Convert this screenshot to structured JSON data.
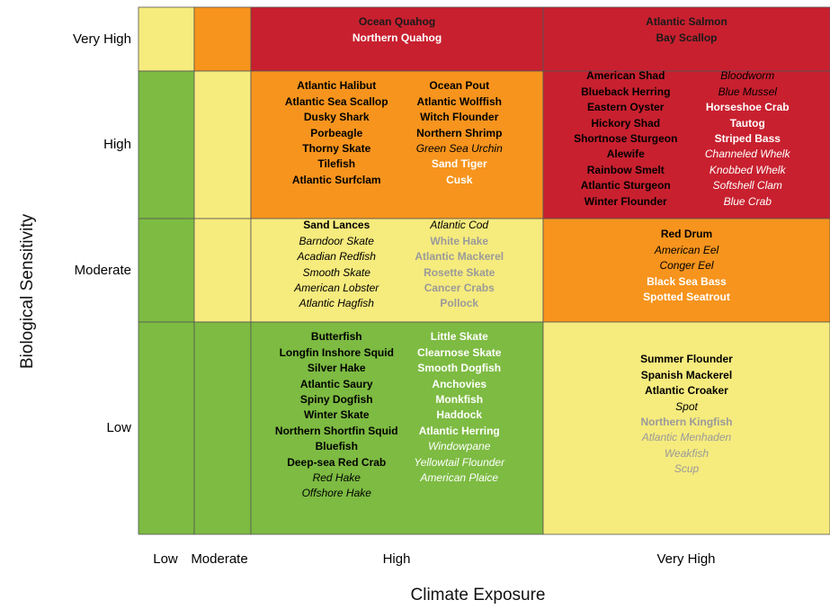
{
  "chart_data": {
    "type": "heatmap",
    "title": "",
    "xlabel": "Climate Exposure",
    "ylabel": "Biological Sensitivity",
    "x_categories": [
      "Low",
      "Moderate",
      "High",
      "Very High"
    ],
    "y_categories": [
      "Very High",
      "High",
      "Moderate",
      "Low"
    ],
    "colors": {
      "low": "#7dbb42",
      "moderate": "#f6eb7d",
      "high": "#f7941d",
      "very_high": "#c8202f"
    },
    "cells": [
      {
        "row": "Very High",
        "col": "Low",
        "level": "moderate",
        "species": []
      },
      {
        "row": "Very High",
        "col": "Moderate",
        "level": "high",
        "species": []
      },
      {
        "row": "Very High",
        "col": "High",
        "level": "very_high",
        "columns": [
          [
            {
              "name": "Ocean Quahog",
              "bold": true,
              "italic": false,
              "color": "#1a1a1a"
            },
            {
              "name": "Northern Quahog",
              "bold": true,
              "italic": false,
              "color": "#ffffff"
            }
          ]
        ]
      },
      {
        "row": "Very High",
        "col": "Very High",
        "level": "very_high",
        "columns": [
          [
            {
              "name": "Atlantic Salmon",
              "bold": true,
              "italic": false,
              "color": "#1a1a1a"
            },
            {
              "name": "Bay Scallop",
              "bold": true,
              "italic": false,
              "color": "#1a1a1a"
            }
          ]
        ]
      },
      {
        "row": "High",
        "col": "Low",
        "level": "low",
        "species": []
      },
      {
        "row": "High",
        "col": "Moderate",
        "level": "moderate",
        "species": []
      },
      {
        "row": "High",
        "col": "High",
        "level": "high",
        "columns": [
          [
            {
              "name": "Atlantic Halibut",
              "bold": true,
              "italic": false,
              "color": "#000000"
            },
            {
              "name": "Atlantic Sea Scallop",
              "bold": true,
              "italic": false,
              "color": "#000000"
            },
            {
              "name": "Dusky Shark",
              "bold": true,
              "italic": false,
              "color": "#000000"
            },
            {
              "name": "Porbeagle",
              "bold": true,
              "italic": false,
              "color": "#000000"
            },
            {
              "name": "Thorny Skate",
              "bold": true,
              "italic": false,
              "color": "#000000"
            },
            {
              "name": "Tilefish",
              "bold": true,
              "italic": false,
              "color": "#000000"
            },
            {
              "name": "Atlantic Surfclam",
              "bold": true,
              "italic": false,
              "color": "#000000"
            }
          ],
          [
            {
              "name": "Ocean Pout",
              "bold": true,
              "italic": false,
              "color": "#000000"
            },
            {
              "name": "Atlantic Wolffish",
              "bold": true,
              "italic": false,
              "color": "#000000"
            },
            {
              "name": "Witch Flounder",
              "bold": true,
              "italic": false,
              "color": "#000000"
            },
            {
              "name": "Northern Shrimp",
              "bold": true,
              "italic": false,
              "color": "#000000"
            },
            {
              "name": "Green Sea Urchin",
              "bold": false,
              "italic": true,
              "color": "#000000"
            },
            {
              "name": "Sand Tiger",
              "bold": true,
              "italic": false,
              "color": "#ffffff"
            },
            {
              "name": "Cusk",
              "bold": true,
              "italic": false,
              "color": "#ffffff"
            }
          ]
        ]
      },
      {
        "row": "High",
        "col": "Very High",
        "level": "very_high",
        "columns": [
          [
            {
              "name": "American Shad",
              "bold": true,
              "italic": false,
              "color": "#000000"
            },
            {
              "name": "Blueback Herring",
              "bold": true,
              "italic": false,
              "color": "#000000"
            },
            {
              "name": "Eastern Oyster",
              "bold": true,
              "italic": false,
              "color": "#000000"
            },
            {
              "name": "Hickory Shad",
              "bold": true,
              "italic": false,
              "color": "#000000"
            },
            {
              "name": "Shortnose Sturgeon",
              "bold": true,
              "italic": false,
              "color": "#000000"
            },
            {
              "name": "Alewife",
              "bold": true,
              "italic": false,
              "color": "#000000"
            },
            {
              "name": "Rainbow Smelt",
              "bold": true,
              "italic": false,
              "color": "#000000"
            },
            {
              "name": "Atlantic Sturgeon",
              "bold": true,
              "italic": false,
              "color": "#000000"
            },
            {
              "name": "Winter Flounder",
              "bold": true,
              "italic": false,
              "color": "#000000"
            }
          ],
          [
            {
              "name": "Bloodworm",
              "bold": false,
              "italic": true,
              "color": "#000000"
            },
            {
              "name": "Blue Mussel",
              "bold": false,
              "italic": true,
              "color": "#000000"
            },
            {
              "name": "Horseshoe Crab",
              "bold": true,
              "italic": false,
              "color": "#ffffff"
            },
            {
              "name": "Tautog",
              "bold": true,
              "italic": false,
              "color": "#ffffff"
            },
            {
              "name": "Striped Bass",
              "bold": true,
              "italic": false,
              "color": "#ffffff"
            },
            {
              "name": "Channeled Whelk",
              "bold": false,
              "italic": true,
              "color": "#ffffff"
            },
            {
              "name": "Knobbed Whelk",
              "bold": false,
              "italic": true,
              "color": "#ffffff"
            },
            {
              "name": "Softshell Clam",
              "bold": false,
              "italic": true,
              "color": "#ffffff"
            },
            {
              "name": "Blue Crab",
              "bold": false,
              "italic": true,
              "color": "#ffffff"
            }
          ]
        ]
      },
      {
        "row": "Moderate",
        "col": "Low",
        "level": "low",
        "species": []
      },
      {
        "row": "Moderate",
        "col": "Moderate",
        "level": "moderate",
        "species": []
      },
      {
        "row": "Moderate",
        "col": "High",
        "level": "moderate",
        "columns": [
          [
            {
              "name": "Sand Lances",
              "bold": true,
              "italic": false,
              "color": "#000000"
            },
            {
              "name": "Barndoor Skate",
              "bold": false,
              "italic": true,
              "color": "#000000"
            },
            {
              "name": "Acadian Redfish",
              "bold": false,
              "italic": true,
              "color": "#000000"
            },
            {
              "name": "Smooth Skate",
              "bold": false,
              "italic": true,
              "color": "#000000"
            },
            {
              "name": "American Lobster",
              "bold": false,
              "italic": true,
              "color": "#000000"
            },
            {
              "name": "Atlantic Hagfish",
              "bold": false,
              "italic": true,
              "color": "#000000"
            }
          ],
          [
            {
              "name": "Atlantic Cod",
              "bold": false,
              "italic": true,
              "color": "#000000"
            },
            {
              "name": "White Hake",
              "bold": true,
              "italic": false,
              "color": "#9a9a9a"
            },
            {
              "name": "Atlantic Mackerel",
              "bold": true,
              "italic": false,
              "color": "#9a9a9a"
            },
            {
              "name": "Rosette Skate",
              "bold": true,
              "italic": false,
              "color": "#9a9a9a"
            },
            {
              "name": "Cancer Crabs",
              "bold": true,
              "italic": false,
              "color": "#9a9a9a"
            },
            {
              "name": "Pollock",
              "bold": true,
              "italic": false,
              "color": "#9a9a9a"
            }
          ]
        ]
      },
      {
        "row": "Moderate",
        "col": "Very High",
        "level": "high",
        "columns": [
          [
            {
              "name": "Red Drum",
              "bold": true,
              "italic": false,
              "color": "#000000"
            },
            {
              "name": "American Eel",
              "bold": false,
              "italic": true,
              "color": "#000000"
            },
            {
              "name": "Conger Eel",
              "bold": false,
              "italic": true,
              "color": "#000000"
            },
            {
              "name": "Black Sea Bass",
              "bold": true,
              "italic": false,
              "color": "#ffffff"
            },
            {
              "name": "Spotted Seatrout",
              "bold": true,
              "italic": false,
              "color": "#ffffff"
            }
          ]
        ]
      },
      {
        "row": "Low",
        "col": "Low",
        "level": "low",
        "species": []
      },
      {
        "row": "Low",
        "col": "Moderate",
        "level": "low",
        "species": []
      },
      {
        "row": "Low",
        "col": "High",
        "level": "low",
        "columns": [
          [
            {
              "name": "Butterfish",
              "bold": true,
              "italic": false,
              "color": "#000000"
            },
            {
              "name": "Longfin Inshore Squid",
              "bold": true,
              "italic": false,
              "color": "#000000"
            },
            {
              "name": "Silver Hake",
              "bold": true,
              "italic": false,
              "color": "#000000"
            },
            {
              "name": "Atlantic Saury",
              "bold": true,
              "italic": false,
              "color": "#000000"
            },
            {
              "name": "Spiny Dogfish",
              "bold": true,
              "italic": false,
              "color": "#000000"
            },
            {
              "name": "Winter Skate",
              "bold": true,
              "italic": false,
              "color": "#000000"
            },
            {
              "name": "Northern Shortfin Squid",
              "bold": true,
              "italic": false,
              "color": "#000000"
            },
            {
              "name": "Bluefish",
              "bold": true,
              "italic": false,
              "color": "#000000"
            },
            {
              "name": "Deep-sea Red Crab",
              "bold": true,
              "italic": false,
              "color": "#000000"
            },
            {
              "name": "Red Hake",
              "bold": false,
              "italic": true,
              "color": "#000000"
            },
            {
              "name": "Offshore Hake",
              "bold": false,
              "italic": true,
              "color": "#000000"
            }
          ],
          [
            {
              "name": "Little Skate",
              "bold": true,
              "italic": false,
              "color": "#ffffff"
            },
            {
              "name": "Clearnose Skate",
              "bold": true,
              "italic": false,
              "color": "#ffffff"
            },
            {
              "name": "Smooth Dogfish",
              "bold": true,
              "italic": false,
              "color": "#ffffff"
            },
            {
              "name": "Anchovies",
              "bold": true,
              "italic": false,
              "color": "#ffffff"
            },
            {
              "name": "Monkfish",
              "bold": true,
              "italic": false,
              "color": "#ffffff"
            },
            {
              "name": "Haddock",
              "bold": true,
              "italic": false,
              "color": "#ffffff"
            },
            {
              "name": "Atlantic Herring",
              "bold": true,
              "italic": false,
              "color": "#ffffff"
            },
            {
              "name": "Windowpane",
              "bold": false,
              "italic": true,
              "color": "#ffffff"
            },
            {
              "name": "Yellowtail Flounder",
              "bold": false,
              "italic": true,
              "color": "#ffffff"
            },
            {
              "name": "American Plaice",
              "bold": false,
              "italic": true,
              "color": "#ffffff"
            }
          ]
        ]
      },
      {
        "row": "Low",
        "col": "Very High",
        "level": "moderate",
        "columns": [
          [
            {
              "name": "Summer Flounder",
              "bold": true,
              "italic": false,
              "color": "#000000"
            },
            {
              "name": "Spanish Mackerel",
              "bold": true,
              "italic": false,
              "color": "#000000"
            },
            {
              "name": "Atlantic Croaker",
              "bold": true,
              "italic": false,
              "color": "#000000"
            },
            {
              "name": "Spot",
              "bold": false,
              "italic": true,
              "color": "#000000"
            },
            {
              "name": "Northern Kingfish",
              "bold": true,
              "italic": false,
              "color": "#9a9a9a"
            },
            {
              "name": "Atlantic Menhaden",
              "bold": false,
              "italic": true,
              "color": "#9a9a9a"
            },
            {
              "name": "Weakfish",
              "bold": false,
              "italic": true,
              "color": "#9a9a9a"
            },
            {
              "name": "Scup",
              "bold": false,
              "italic": true,
              "color": "#9a9a9a"
            }
          ]
        ]
      }
    ]
  }
}
